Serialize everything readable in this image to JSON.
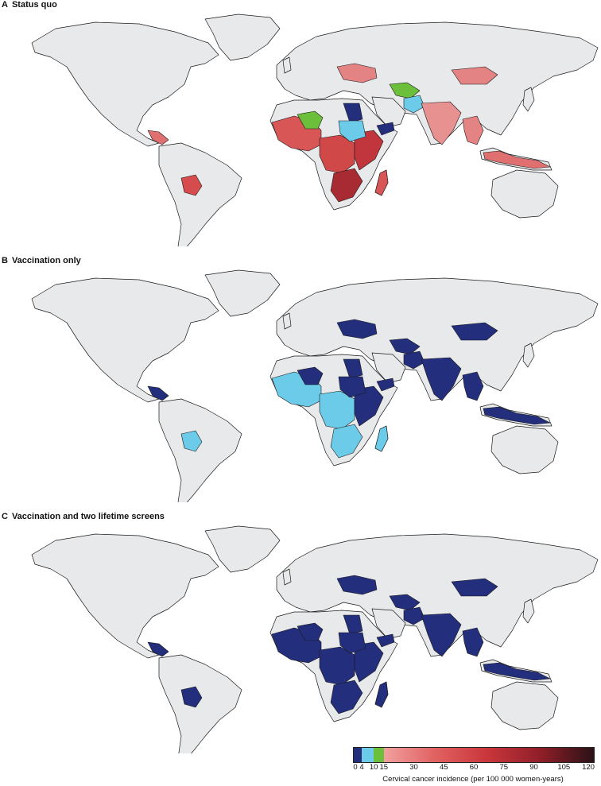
{
  "panels": [
    {
      "letter": "A",
      "title": "Status quo",
      "regions": [
        {
          "id": "central-america-coast",
          "color": "#e07070"
        },
        {
          "id": "bolivia",
          "color": "#d64b4b"
        },
        {
          "id": "west-africa",
          "color": "#d95656"
        },
        {
          "id": "sahel-green",
          "color": "#6bbf3a"
        },
        {
          "id": "central-africa",
          "color": "#d04848"
        },
        {
          "id": "east-africa",
          "color": "#c0363c"
        },
        {
          "id": "southern-africa",
          "color": "#a82a33"
        },
        {
          "id": "egypt",
          "color": "#232f7d"
        },
        {
          "id": "sudan",
          "color": "#6ccbe8"
        },
        {
          "id": "yemen-somalia",
          "color": "#232f7d"
        },
        {
          "id": "madagascar",
          "color": "#d95656"
        },
        {
          "id": "kazakhstan-ukraine",
          "color": "#e48383"
        },
        {
          "id": "central-asia",
          "color": "#6bbf3a"
        },
        {
          "id": "afghanistan",
          "color": "#6ccbe8"
        },
        {
          "id": "india",
          "color": "#e89191"
        },
        {
          "id": "mongolia",
          "color": "#e48383"
        },
        {
          "id": "southeast-asia",
          "color": "#e48383"
        },
        {
          "id": "indonesia",
          "color": "#e07070"
        }
      ]
    },
    {
      "letter": "B",
      "title": "Vaccination only",
      "regions": [
        {
          "id": "central-america-coast",
          "color": "#232f7d"
        },
        {
          "id": "bolivia",
          "color": "#6ccbe8"
        },
        {
          "id": "west-africa",
          "color": "#6ccbe8"
        },
        {
          "id": "sahel-green",
          "color": "#232f7d"
        },
        {
          "id": "central-africa",
          "color": "#6ccbe8"
        },
        {
          "id": "east-africa",
          "color": "#232f7d"
        },
        {
          "id": "southern-africa",
          "color": "#6ccbe8"
        },
        {
          "id": "egypt",
          "color": "#232f7d"
        },
        {
          "id": "sudan",
          "color": "#232f7d"
        },
        {
          "id": "yemen-somalia",
          "color": "#232f7d"
        },
        {
          "id": "madagascar",
          "color": "#6ccbe8"
        },
        {
          "id": "kazakhstan-ukraine",
          "color": "#232f7d"
        },
        {
          "id": "central-asia",
          "color": "#232f7d"
        },
        {
          "id": "afghanistan",
          "color": "#232f7d"
        },
        {
          "id": "india",
          "color": "#232f7d"
        },
        {
          "id": "mongolia",
          "color": "#232f7d"
        },
        {
          "id": "southeast-asia",
          "color": "#232f7d"
        },
        {
          "id": "indonesia",
          "color": "#232f7d"
        }
      ]
    },
    {
      "letter": "C",
      "title": "Vaccination and two lifetime screens",
      "regions": [
        {
          "id": "central-america-coast",
          "color": "#232f7d"
        },
        {
          "id": "bolivia",
          "color": "#232f7d"
        },
        {
          "id": "west-africa",
          "color": "#232f7d"
        },
        {
          "id": "sahel-green",
          "color": "#232f7d"
        },
        {
          "id": "central-africa",
          "color": "#232f7d"
        },
        {
          "id": "east-africa",
          "color": "#232f7d"
        },
        {
          "id": "southern-africa",
          "color": "#232f7d"
        },
        {
          "id": "egypt",
          "color": "#232f7d"
        },
        {
          "id": "sudan",
          "color": "#232f7d"
        },
        {
          "id": "yemen-somalia",
          "color": "#232f7d"
        },
        {
          "id": "madagascar",
          "color": "#232f7d"
        },
        {
          "id": "kazakhstan-ukraine",
          "color": "#232f7d"
        },
        {
          "id": "central-asia",
          "color": "#232f7d"
        },
        {
          "id": "afghanistan",
          "color": "#232f7d"
        },
        {
          "id": "india",
          "color": "#232f7d"
        },
        {
          "id": "mongolia",
          "color": "#232f7d"
        },
        {
          "id": "southeast-asia",
          "color": "#232f7d"
        },
        {
          "id": "indonesia",
          "color": "#232f7d"
        }
      ]
    }
  ],
  "legend": {
    "caption": "Cervical cancer incidence (per 100 000 women-years)",
    "ticks": [
      "0",
      "4",
      "10",
      "15",
      "30",
      "45",
      "60",
      "75",
      "90",
      "105",
      "120"
    ],
    "bins": [
      {
        "from": 0,
        "to": 4,
        "color": "#232f7d"
      },
      {
        "from": 4,
        "to": 10,
        "color": "#6ccbe8"
      },
      {
        "from": 10,
        "to": 15,
        "color": "#6bbf3a"
      },
      {
        "from": 15,
        "to": 120,
        "gradient": [
          "#f2a0a0",
          "#e06060",
          "#c8353b",
          "#8e1e28",
          "#2a1216"
        ]
      }
    ]
  }
}
